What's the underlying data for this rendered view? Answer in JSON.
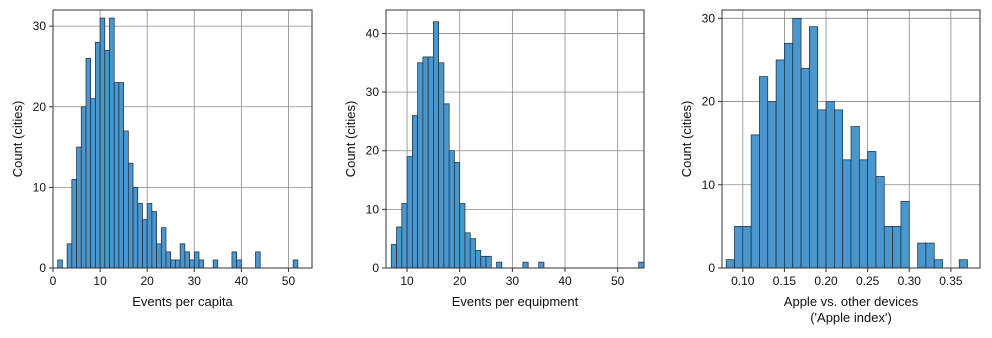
{
  "colors": {
    "bar_fill": "#4a96cf",
    "bar_stroke": "#1f2a33",
    "grid": "#8a8a8a",
    "frame": "#333333"
  },
  "chart_data": [
    {
      "type": "bar",
      "xlabel": "Events per capita",
      "ylabel": "Count (cities)",
      "xlim": [
        0,
        55
      ],
      "ylim": [
        0,
        32
      ],
      "xticks": [
        0,
        10,
        20,
        30,
        40,
        50
      ],
      "yticks": [
        0,
        10,
        20,
        30
      ],
      "grid": true,
      "bin_width": 1,
      "x": [
        1.5,
        3.5,
        4.5,
        5.5,
        6.5,
        7.5,
        8.5,
        9.5,
        10.5,
        11.5,
        12.5,
        13.5,
        14.5,
        15.5,
        16.5,
        17.5,
        18.5,
        19.5,
        20.5,
        21.5,
        22.5,
        23.5,
        24.5,
        25.5,
        26.5,
        27.5,
        28.5,
        29.5,
        30.5,
        31.5,
        34.5,
        38.5,
        39.5,
        43.5,
        51.5
      ],
      "values": [
        1,
        3,
        11,
        15,
        20,
        26,
        21,
        28,
        31,
        27,
        31,
        23,
        23,
        17,
        13,
        10,
        8,
        6,
        8,
        7,
        3,
        5,
        2,
        1,
        1,
        3,
        2,
        1,
        2,
        1,
        1,
        2,
        1,
        2,
        1
      ]
    },
    {
      "type": "bar",
      "xlabel": "Events per equipment",
      "ylabel": "Count (cities)",
      "xlim": [
        6,
        55
      ],
      "ylim": [
        0,
        44
      ],
      "xticks": [
        10,
        20,
        30,
        40,
        50
      ],
      "yticks": [
        0,
        10,
        20,
        30,
        40
      ],
      "grid": true,
      "bin_width": 1,
      "x": [
        7.5,
        8.5,
        9.5,
        10.5,
        11.5,
        12.5,
        13.5,
        14.5,
        15.5,
        16.5,
        17.5,
        18.5,
        19.5,
        20.5,
        21.5,
        22.5,
        23.5,
        24.5,
        25.5,
        27.5,
        32.5,
        35.5,
        54.5
      ],
      "values": [
        4,
        7,
        11,
        19,
        26,
        35,
        36,
        36,
        42,
        35,
        28,
        20,
        18,
        11,
        6,
        5,
        3,
        2,
        2,
        1,
        1,
        1,
        1
      ]
    },
    {
      "type": "bar",
      "xlabel": "Apple vs. other devices\n('Apple index')",
      "ylabel": "Count (cities)",
      "xlim": [
        0.075,
        0.385
      ],
      "ylim": [
        0,
        31
      ],
      "xticks": [
        0.1,
        0.15,
        0.2,
        0.25,
        0.3,
        0.35
      ],
      "xticklabels": [
        "0.10",
        "0.15",
        "0.20",
        "0.25",
        "0.30",
        "0.35"
      ],
      "yticks": [
        0,
        10,
        20,
        30
      ],
      "grid": true,
      "bin_width": 0.01,
      "x": [
        0.085,
        0.095,
        0.105,
        0.115,
        0.125,
        0.135,
        0.145,
        0.155,
        0.165,
        0.175,
        0.185,
        0.195,
        0.205,
        0.215,
        0.225,
        0.235,
        0.245,
        0.255,
        0.265,
        0.275,
        0.285,
        0.295,
        0.315,
        0.325,
        0.335,
        0.365
      ],
      "values": [
        1,
        5,
        5,
        16,
        23,
        20,
        25,
        27,
        30,
        24,
        29,
        19,
        20,
        19,
        13,
        17,
        13,
        14,
        11,
        5,
        5,
        8,
        3,
        3,
        1,
        1
      ]
    }
  ]
}
